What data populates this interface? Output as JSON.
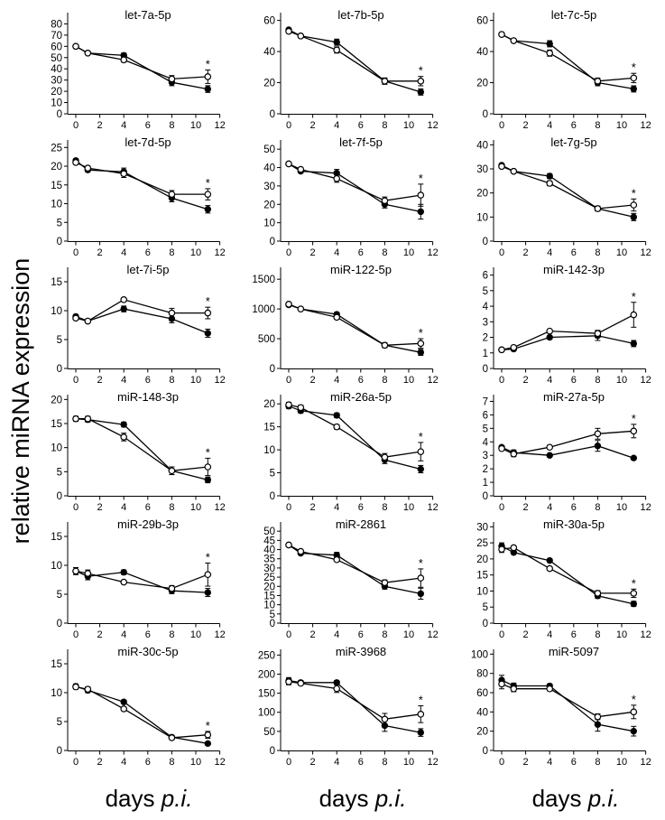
{
  "ylabel": "relative miRNA expression",
  "xlabel_prefix": "days ",
  "xlabel_italic": "p.i.",
  "colors": {
    "ink": "#000000",
    "background": "#ffffff",
    "open_fill": "#ffffff"
  },
  "chart_data": [
    {
      "type": "line",
      "title": "let-7a-5p",
      "x": [
        0,
        1,
        4,
        8,
        11
      ],
      "ylim": [
        0,
        90
      ],
      "yticks": [
        0,
        10,
        20,
        30,
        40,
        50,
        60,
        70,
        80
      ],
      "xticks": [
        0,
        2,
        4,
        6,
        8,
        10,
        12
      ],
      "star": true,
      "series": [
        {
          "name": "filled",
          "values": [
            60,
            54,
            52,
            28,
            22
          ],
          "err": [
            0,
            0,
            2,
            3,
            3
          ]
        },
        {
          "name": "open",
          "values": [
            60,
            54,
            48,
            31,
            33
          ],
          "err": [
            0,
            0,
            2,
            3,
            6
          ]
        }
      ]
    },
    {
      "type": "line",
      "title": "let-7b-5p",
      "x": [
        0,
        1,
        4,
        8,
        11
      ],
      "ylim": [
        0,
        65
      ],
      "yticks": [
        0,
        20,
        40,
        60
      ],
      "xticks": [
        0,
        2,
        4,
        6,
        8,
        10,
        12
      ],
      "star": true,
      "series": [
        {
          "name": "filled",
          "values": [
            54,
            50,
            46,
            21,
            14
          ],
          "err": [
            0,
            0,
            2,
            2,
            2
          ]
        },
        {
          "name": "open",
          "values": [
            53,
            50,
            41,
            21,
            21
          ],
          "err": [
            0,
            0,
            2,
            2,
            3
          ]
        }
      ]
    },
    {
      "type": "line",
      "title": "let-7c-5p",
      "x": [
        0,
        1,
        4,
        8,
        11
      ],
      "ylim": [
        0,
        65
      ],
      "yticks": [
        0,
        20,
        40,
        60
      ],
      "xticks": [
        0,
        2,
        4,
        6,
        8,
        10,
        12
      ],
      "star": true,
      "series": [
        {
          "name": "filled",
          "values": [
            51,
            47,
            45,
            20,
            16
          ],
          "err": [
            0,
            0,
            2,
            2,
            2
          ]
        },
        {
          "name": "open",
          "values": [
            51,
            47,
            39,
            21,
            23
          ],
          "err": [
            0,
            0,
            2,
            2,
            3
          ]
        }
      ]
    },
    {
      "type": "line",
      "title": "let-7d-5p",
      "x": [
        0,
        1,
        4,
        8,
        11
      ],
      "ylim": [
        0,
        27
      ],
      "yticks": [
        0,
        5,
        10,
        15,
        20,
        25
      ],
      "xticks": [
        0,
        2,
        4,
        6,
        8,
        10,
        12
      ],
      "star": true,
      "series": [
        {
          "name": "filled",
          "values": [
            21.5,
            19,
            18.5,
            11.5,
            8.5
          ],
          "err": [
            0.5,
            0.5,
            1,
            1,
            1
          ]
        },
        {
          "name": "open",
          "values": [
            21,
            19.5,
            18,
            12.5,
            12.5
          ],
          "err": [
            0.5,
            0.5,
            1,
            1,
            1.5
          ]
        }
      ]
    },
    {
      "type": "line",
      "title": "let-7f-5p",
      "x": [
        0,
        1,
        4,
        8,
        11
      ],
      "ylim": [
        0,
        55
      ],
      "yticks": [
        0,
        10,
        20,
        30,
        40,
        50
      ],
      "xticks": [
        0,
        2,
        4,
        6,
        8,
        10,
        12
      ],
      "star": true,
      "series": [
        {
          "name": "filled",
          "values": [
            42,
            38,
            37,
            20,
            16
          ],
          "err": [
            0,
            0,
            2,
            2,
            4
          ]
        },
        {
          "name": "open",
          "values": [
            42,
            39,
            34,
            22,
            25
          ],
          "err": [
            0,
            0,
            2,
            2,
            6
          ]
        }
      ]
    },
    {
      "type": "line",
      "title": "let-7g-5p",
      "x": [
        0,
        1,
        4,
        8,
        11
      ],
      "ylim": [
        0,
        42
      ],
      "yticks": [
        0,
        10,
        20,
        30,
        40
      ],
      "xticks": [
        0,
        2,
        4,
        6,
        8,
        10,
        12
      ],
      "star": true,
      "series": [
        {
          "name": "filled",
          "values": [
            31.5,
            29,
            27,
            13.5,
            10
          ],
          "err": [
            0.5,
            0.5,
            1,
            1,
            1.5
          ]
        },
        {
          "name": "open",
          "values": [
            31,
            29,
            24,
            13.5,
            15
          ],
          "err": [
            0.5,
            0.5,
            1,
            1,
            2.5
          ]
        }
      ]
    },
    {
      "type": "line",
      "title": "let-7i-5p",
      "x": [
        0,
        1,
        4,
        8,
        11
      ],
      "ylim": [
        0,
        17.5
      ],
      "yticks": [
        0,
        5,
        10,
        15
      ],
      "xticks": [
        0,
        2,
        4,
        6,
        8,
        10,
        12
      ],
      "star": true,
      "series": [
        {
          "name": "filled",
          "values": [
            9,
            8.2,
            10.3,
            8.6,
            6.1
          ],
          "err": [
            0.3,
            0.2,
            0.5,
            0.7,
            0.7
          ]
        },
        {
          "name": "open",
          "values": [
            8.7,
            8.2,
            11.9,
            9.6,
            9.6
          ],
          "err": [
            0.3,
            0.2,
            0.3,
            0.8,
            1
          ]
        }
      ]
    },
    {
      "type": "line",
      "title": "miR-122-5p",
      "x": [
        0,
        1,
        4,
        8,
        11
      ],
      "ylim": [
        0,
        1700
      ],
      "yticks": [
        0,
        500,
        1000,
        1500
      ],
      "xticks": [
        0,
        2,
        4,
        6,
        8,
        10,
        12
      ],
      "star": true,
      "series": [
        {
          "name": "filled",
          "values": [
            1070,
            1000,
            910,
            390,
            270
          ],
          "err": [
            30,
            20,
            30,
            40,
            50
          ]
        },
        {
          "name": "open",
          "values": [
            1080,
            1000,
            860,
            390,
            420
          ],
          "err": [
            30,
            20,
            30,
            40,
            80
          ]
        }
      ]
    },
    {
      "type": "line",
      "title": "miR-142-3p",
      "x": [
        0,
        1,
        4,
        8,
        11
      ],
      "ylim": [
        0,
        6.5
      ],
      "yticks": [
        0,
        1,
        2,
        3,
        4,
        5,
        6
      ],
      "xticks": [
        0,
        2,
        4,
        6,
        8,
        10,
        12
      ],
      "star": true,
      "series": [
        {
          "name": "filled",
          "values": [
            1.2,
            1.25,
            2.0,
            2.1,
            1.6
          ],
          "err": [
            0.1,
            0.1,
            0.1,
            0.3,
            0.2
          ]
        },
        {
          "name": "open",
          "values": [
            1.2,
            1.35,
            2.4,
            2.25,
            3.45
          ],
          "err": [
            0.1,
            0.1,
            0.1,
            0.2,
            0.8
          ]
        }
      ]
    },
    {
      "type": "line",
      "title": "miR-148-3p",
      "x": [
        0,
        1,
        4,
        8,
        11
      ],
      "ylim": [
        0,
        21
      ],
      "yticks": [
        0,
        5,
        10,
        15,
        20
      ],
      "xticks": [
        0,
        2,
        4,
        6,
        8,
        10,
        12
      ],
      "star": true,
      "series": [
        {
          "name": "filled",
          "values": [
            16,
            15.8,
            14.8,
            5.2,
            3.3
          ],
          "err": [
            0.5,
            0.5,
            0.5,
            0.8,
            0.6
          ]
        },
        {
          "name": "open",
          "values": [
            16,
            16,
            12.2,
            5.2,
            6
          ],
          "err": [
            0.5,
            0.5,
            0.8,
            0.8,
            1.8
          ]
        }
      ]
    },
    {
      "type": "line",
      "title": "miR-26a-5p",
      "x": [
        0,
        1,
        4,
        8,
        11
      ],
      "ylim": [
        0,
        22
      ],
      "yticks": [
        0,
        5,
        10,
        15,
        20
      ],
      "xticks": [
        0,
        2,
        4,
        6,
        8,
        10,
        12
      ],
      "star": true,
      "series": [
        {
          "name": "filled",
          "values": [
            19.5,
            18.5,
            17.5,
            7.8,
            5.8
          ],
          "err": [
            0.5,
            0.5,
            0.5,
            0.8,
            0.8
          ]
        },
        {
          "name": "open",
          "values": [
            19.8,
            19.2,
            15,
            8.4,
            9.6
          ],
          "err": [
            0.5,
            0.5,
            0.5,
            0.8,
            2
          ]
        }
      ]
    },
    {
      "type": "line",
      "title": "miR-27a-5p",
      "x": [
        0,
        1,
        4,
        8,
        11
      ],
      "ylim": [
        0,
        7.5
      ],
      "yticks": [
        0,
        1,
        2,
        3,
        4,
        5,
        6,
        7
      ],
      "xticks": [
        0,
        2,
        4,
        6,
        8,
        10,
        12
      ],
      "star": true,
      "series": [
        {
          "name": "filled",
          "values": [
            3.6,
            3.2,
            3.0,
            3.7,
            2.8
          ],
          "err": [
            0.1,
            0.2,
            0.1,
            0.4,
            0.1
          ]
        },
        {
          "name": "open",
          "values": [
            3.5,
            3.1,
            3.6,
            4.6,
            4.8
          ],
          "err": [
            0.1,
            0.2,
            0.1,
            0.4,
            0.5
          ]
        }
      ]
    },
    {
      "type": "line",
      "title": "miR-29b-3p",
      "x": [
        0,
        1,
        4,
        8,
        11
      ],
      "ylim": [
        0,
        17.5
      ],
      "yticks": [
        0,
        5,
        10,
        15
      ],
      "xticks": [
        0,
        2,
        4,
        6,
        8,
        10,
        12
      ],
      "star": true,
      "series": [
        {
          "name": "filled",
          "values": [
            9,
            8.1,
            8.8,
            5.6,
            5.3
          ],
          "err": [
            0.6,
            0.6,
            0.4,
            0.5,
            0.7
          ]
        },
        {
          "name": "open",
          "values": [
            9,
            8.6,
            7.1,
            6,
            8.4
          ],
          "err": [
            0.6,
            0.6,
            0.3,
            0.5,
            2
          ]
        }
      ]
    },
    {
      "type": "line",
      "title": "miR-2861",
      "x": [
        0,
        1,
        4,
        8,
        11
      ],
      "ylim": [
        0,
        55
      ],
      "yticks": [
        0,
        5,
        10,
        15,
        20,
        25,
        30,
        35,
        40,
        45,
        50
      ],
      "xticks": [
        0,
        2,
        4,
        6,
        8,
        10,
        12
      ],
      "star": true,
      "series": [
        {
          "name": "filled",
          "values": [
            42.5,
            38,
            37,
            20,
            16
          ],
          "err": [
            1,
            0.5,
            1.5,
            1.5,
            3
          ]
        },
        {
          "name": "open",
          "values": [
            42.5,
            39,
            34.5,
            22,
            24.5
          ],
          "err": [
            1,
            0.5,
            1,
            1.5,
            5
          ]
        }
      ]
    },
    {
      "type": "line",
      "title": "miR-30a-5p",
      "x": [
        0,
        1,
        4,
        8,
        11
      ],
      "ylim": [
        0,
        31.5
      ],
      "yticks": [
        0,
        5,
        10,
        15,
        20,
        25,
        30
      ],
      "xticks": [
        0,
        2,
        4,
        6,
        8,
        10,
        12
      ],
      "star": true,
      "series": [
        {
          "name": "filled",
          "values": [
            24,
            22,
            19.5,
            8.5,
            6
          ],
          "err": [
            1,
            0.5,
            0.5,
            0.8,
            0.8
          ]
        },
        {
          "name": "open",
          "values": [
            23,
            23.5,
            17,
            9.3,
            9.3
          ],
          "err": [
            1,
            0.5,
            0.5,
            0.8,
            1.3
          ]
        }
      ]
    },
    {
      "type": "line",
      "title": "miR-30c-5p",
      "x": [
        0,
        1,
        4,
        8,
        11
      ],
      "ylim": [
        0,
        17.5
      ],
      "yticks": [
        0,
        5,
        10,
        15
      ],
      "xticks": [
        0,
        2,
        4,
        6,
        8,
        10,
        12
      ],
      "star": true,
      "series": [
        {
          "name": "filled",
          "values": [
            11.1,
            10.4,
            8.4,
            2.3,
            1.2
          ],
          "err": [
            0.4,
            0.4,
            0.3,
            0.3,
            0.2
          ]
        },
        {
          "name": "open",
          "values": [
            11,
            10.6,
            7.2,
            2.2,
            2.7
          ],
          "err": [
            0.4,
            0.4,
            0.3,
            0.3,
            0.6
          ]
        }
      ]
    },
    {
      "type": "line",
      "title": "miR-3968",
      "x": [
        0,
        1,
        4,
        8,
        11
      ],
      "ylim": [
        0,
        265
      ],
      "yticks": [
        0,
        50,
        100,
        150,
        200,
        250
      ],
      "xticks": [
        0,
        2,
        4,
        6,
        8,
        10,
        12
      ],
      "star": true,
      "series": [
        {
          "name": "filled",
          "values": [
            183,
            178,
            178,
            65,
            47
          ],
          "err": [
            8,
            5,
            5,
            15,
            10
          ]
        },
        {
          "name": "open",
          "values": [
            180,
            176,
            162,
            82,
            95
          ],
          "err": [
            8,
            5,
            10,
            15,
            22
          ]
        }
      ]
    },
    {
      "type": "line",
      "title": "miR-5097",
      "x": [
        0,
        1,
        4,
        8,
        11
      ],
      "ylim": [
        0,
        105
      ],
      "yticks": [
        0,
        20,
        40,
        60,
        80,
        100
      ],
      "xticks": [
        0,
        2,
        4,
        6,
        8,
        10,
        12
      ],
      "star": true,
      "series": [
        {
          "name": "filled",
          "values": [
            73,
            67,
            67,
            27,
            20
          ],
          "err": [
            5,
            3,
            2,
            7,
            5
          ]
        },
        {
          "name": "open",
          "values": [
            69,
            64,
            64,
            35,
            40
          ],
          "err": [
            5,
            3,
            2,
            3,
            7
          ]
        }
      ]
    }
  ]
}
